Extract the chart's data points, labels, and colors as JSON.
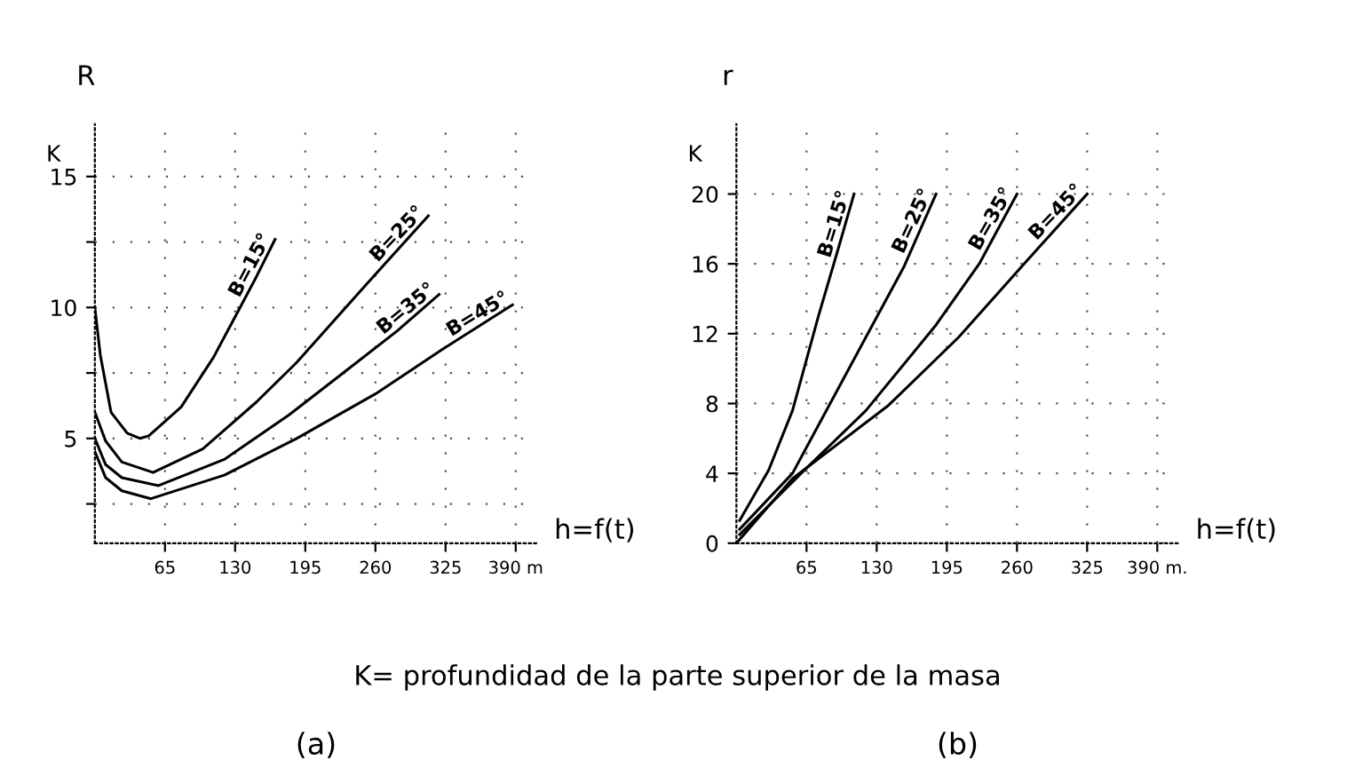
{
  "chart_data": [
    {
      "type": "line",
      "title": "(a)",
      "xlabel": "h=f(t)",
      "ylabel": "R",
      "xlim": [
        0,
        410
      ],
      "ylim": [
        1,
        17
      ],
      "xticks": [
        65,
        130,
        195,
        260,
        325,
        {
          "value": 390,
          "label": "390 m"
        }
      ],
      "yticks": [
        {
          "value": 2.5,
          "label": null
        },
        5,
        {
          "value": 7.5,
          "label": null
        },
        10,
        {
          "value": 12.5,
          "label": null
        },
        15
      ],
      "grid": true,
      "legend": false,
      "line_style": "solid",
      "marker": "none",
      "annotations": [
        "K",
        "K= profundidad de la parte superior de la masa"
      ],
      "series": [
        {
          "name": "B=15°",
          "color": "#000000",
          "x": [
            0,
            5,
            15,
            30,
            42,
            50,
            80,
            110,
            132,
            150,
            167
          ],
          "values": [
            10,
            8.2,
            6.0,
            5.2,
            5,
            5.1,
            6.2,
            8.1,
            9.8,
            11.2,
            12.6
          ]
        },
        {
          "name": "B=25°",
          "color": "#000000",
          "x": [
            0,
            10,
            25,
            54,
            100,
            150,
            187,
            252,
            309
          ],
          "values": [
            6.0,
            4.9,
            4.1,
            3.7,
            4.6,
            6.4,
            7.9,
            10.9,
            13.5
          ]
        },
        {
          "name": "B=35°",
          "color": "#000000",
          "x": [
            0,
            10,
            25,
            59,
            120,
            180,
            227,
            280,
            319
          ],
          "values": [
            5.0,
            4.0,
            3.5,
            3.2,
            4.2,
            5.9,
            7.4,
            9.1,
            10.5
          ]
        },
        {
          "name": "B=45°",
          "color": "#000000",
          "x": [
            0,
            10,
            25,
            52,
            120,
            187,
            260,
            322,
            387
          ],
          "values": [
            4.5,
            3.5,
            3.0,
            2.7,
            3.6,
            5.0,
            6.7,
            8.4,
            10.1
          ]
        }
      ]
    },
    {
      "type": "line",
      "title": "(b)",
      "xlabel": "h=f(t)",
      "ylabel": "r",
      "xlim": [
        0,
        410
      ],
      "ylim": [
        0,
        24
      ],
      "xticks": [
        65,
        130,
        195,
        260,
        325,
        {
          "value": 390,
          "label": "390 m."
        }
      ],
      "yticks": [
        0,
        4,
        8,
        12,
        16,
        20
      ],
      "grid": true,
      "legend": false,
      "line_style": "solid",
      "marker": "none",
      "annotations": [
        "K"
      ],
      "series": [
        {
          "name": "B=15°",
          "color": "#000000",
          "x": [
            3,
            30,
            52,
            76,
            95,
            109
          ],
          "values": [
            1.3,
            4.2,
            7.6,
            13,
            17,
            20
          ]
        },
        {
          "name": "B=25°",
          "color": "#000000",
          "x": [
            3,
            52,
            120,
            155,
            185
          ],
          "values": [
            0.8,
            4,
            11.8,
            15.8,
            20
          ]
        },
        {
          "name": "B=35°",
          "color": "#000000",
          "x": [
            3,
            60,
            120,
            185,
            225,
            260
          ],
          "values": [
            0.5,
            4,
            7.6,
            12.5,
            16,
            20
          ]
        },
        {
          "name": "B=45°",
          "color": "#000000",
          "x": [
            0,
            52,
            141,
            206,
            268,
            325
          ],
          "values": [
            0,
            3.7,
            7.9,
            11.8,
            16.1,
            20
          ]
        }
      ]
    }
  ]
}
